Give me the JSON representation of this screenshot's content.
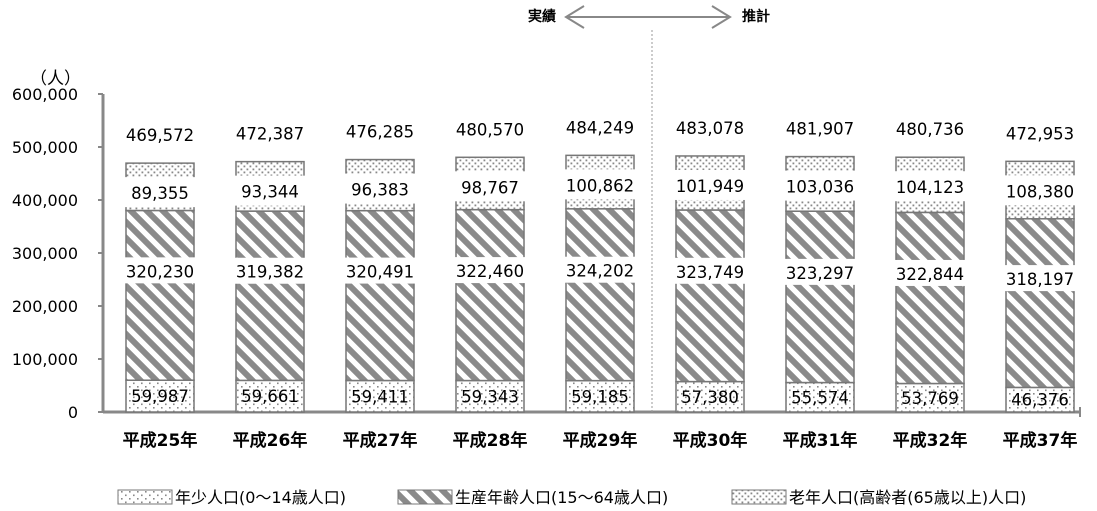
{
  "chart_data": {
    "type": "bar",
    "stacked": true,
    "title": "",
    "unit_label": "（人）",
    "categories": [
      "平成25年",
      "平成26年",
      "平成27年",
      "平成28年",
      "平成29年",
      "平成30年",
      "平成31年",
      "平成32年",
      "平成37年"
    ],
    "series": [
      {
        "name": "年少人口(0～14歳人口)",
        "values": [
          59987,
          59661,
          59411,
          59343,
          59185,
          57380,
          55574,
          53769,
          46376
        ],
        "labels": [
          "59,987",
          "59,661",
          "59,411",
          "59,343",
          "59,185",
          "57,380",
          "55,574",
          "53,769",
          "46,376"
        ]
      },
      {
        "name": "生産年齢人口(15～64歳人口)",
        "values": [
          320230,
          319382,
          320491,
          322460,
          324202,
          323749,
          323297,
          322844,
          318197
        ],
        "labels": [
          "320,230",
          "319,382",
          "320,491",
          "322,460",
          "324,202",
          "323,749",
          "323,297",
          "322,844",
          "318,197"
        ]
      },
      {
        "name": "老年人口(高齢者(65歳以上)人口)",
        "values": [
          89355,
          93344,
          96383,
          98767,
          100862,
          101949,
          103036,
          104123,
          108380
        ],
        "labels": [
          "89,355",
          "93,344",
          "96,383",
          "98,767",
          "100,862",
          "101,949",
          "103,036",
          "104,123",
          "108,380"
        ]
      }
    ],
    "totals": [
      469572,
      472387,
      476285,
      480570,
      484249,
      483078,
      481907,
      480736,
      472953
    ],
    "total_labels": [
      "469,572",
      "472,387",
      "476,285",
      "480,570",
      "484,249",
      "483,078",
      "481,907",
      "480,736",
      "472,953"
    ],
    "ylim": [
      0,
      600000
    ],
    "yticks": [
      0,
      100000,
      200000,
      300000,
      400000,
      500000,
      600000
    ],
    "ytick_labels": [
      "0",
      "100,000",
      "200,000",
      "300,000",
      "400,000",
      "500,000",
      "600,000"
    ],
    "grid": false,
    "legend_position": "bottom",
    "phase_labels": {
      "actual": "実績",
      "estimate": "推計"
    },
    "colors": {
      "pattern": "#888888",
      "border": "#777777"
    }
  }
}
